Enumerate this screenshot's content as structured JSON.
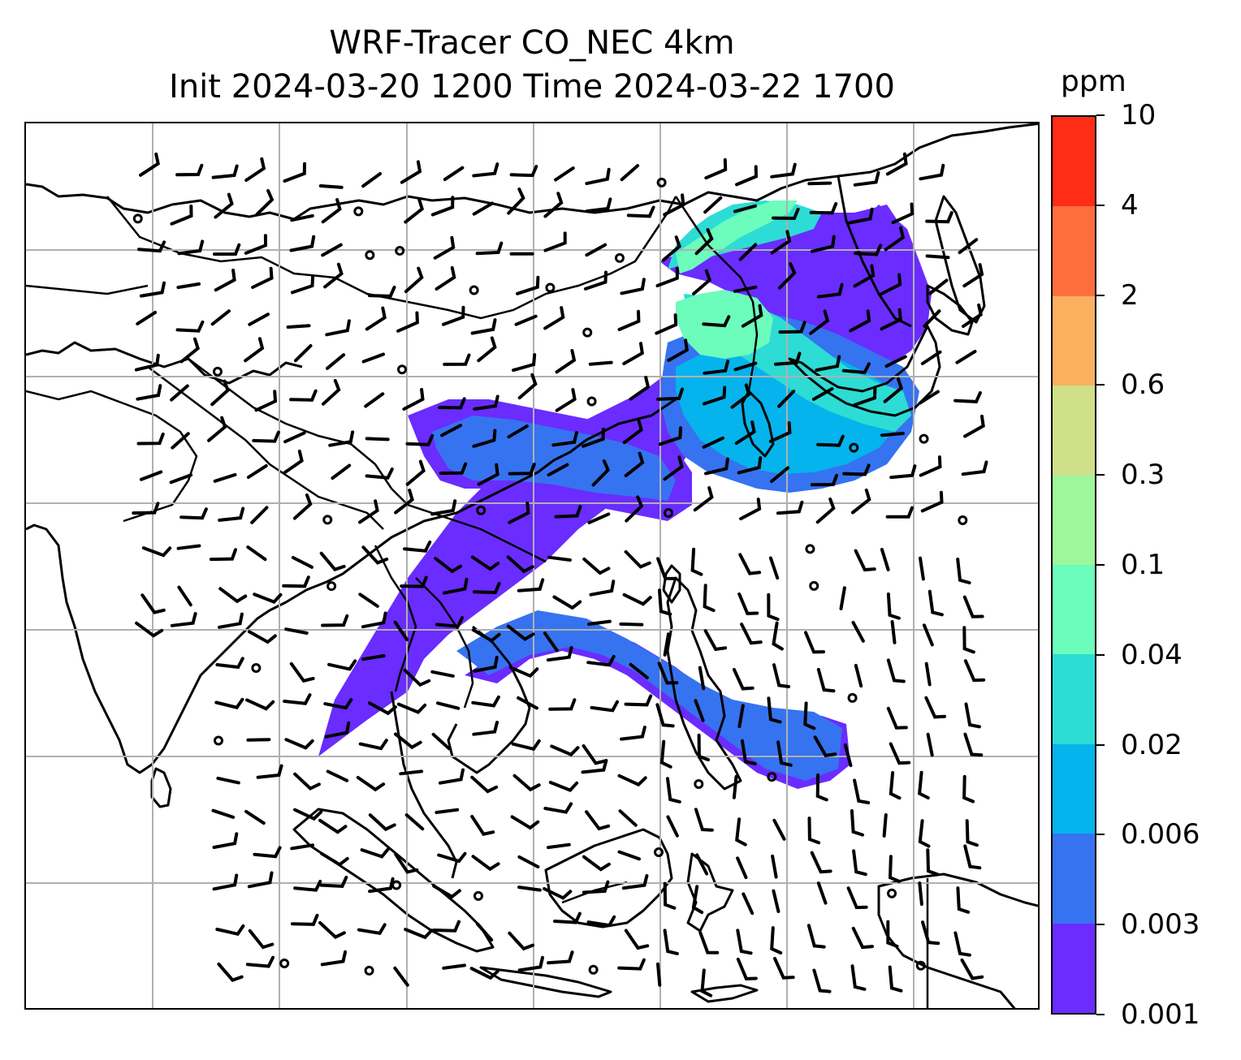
{
  "title": {
    "line1": "WRF-Tracer CO_NEC 4km",
    "line2": "Init 2024-03-20 1200 Time 2024-03-22 1700"
  },
  "colorbar": {
    "unit": "ppm",
    "levels": [
      "0.001",
      "0.003",
      "0.006",
      "0.02",
      "0.04",
      "0.1",
      "0.3",
      "0.6",
      "2",
      "4",
      "10"
    ],
    "colors": [
      "#6a2cff",
      "#3673f0",
      "#05b4ec",
      "#2ddcd4",
      "#6cfcbc",
      "#9ef79b",
      "#cfe089",
      "#fbb060",
      "#ff6e3e",
      "#ff2c16"
    ]
  },
  "map": {
    "gridlines": true,
    "layers": [
      "coastlines",
      "country-borders",
      "wind-barbs",
      "tracer-concentration-fill"
    ]
  }
}
